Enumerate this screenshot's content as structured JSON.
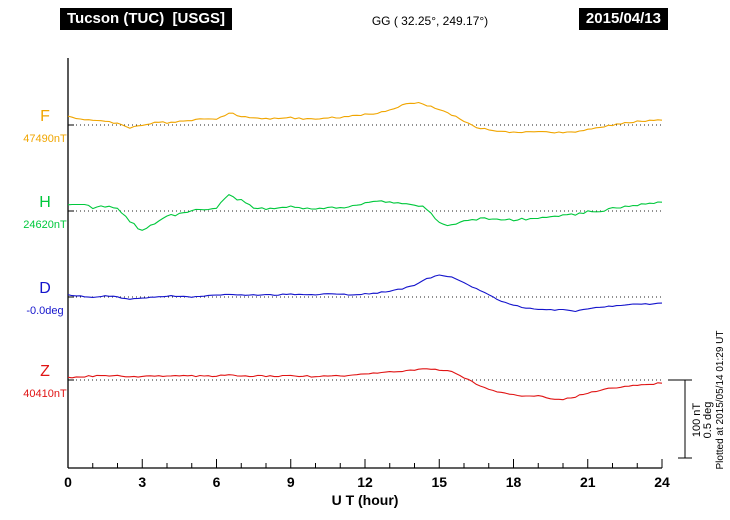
{
  "header": {
    "title": "Tucson (TUC)  [USGS]",
    "coords": "GG ( 32.25°, 249.17°)",
    "date": "2015/04/13"
  },
  "footer": {
    "plotted_at": "Plotted at 2015/05/14 01:29 UT"
  },
  "chart_data": {
    "type": "line",
    "title": "Tucson (TUC) magnetogram 2015/04/13",
    "xlabel": "U T (hour)",
    "xlim": [
      0,
      24
    ],
    "x_ticks": [
      0,
      3,
      6,
      9,
      12,
      15,
      18,
      21,
      24
    ],
    "x_step_hours": 0.5,
    "grid": "dotted horizontal baseline per channel",
    "legend_position": "left margin channel labels",
    "scale_reference": {
      "nT_label": "100 nT",
      "deg_label": "0.5 deg"
    },
    "series": [
      {
        "name": "F",
        "unit": "nT",
        "baseline_label": "47490nT",
        "color": "#f0a500",
        "offsets": [
          10,
          8,
          6,
          4,
          2,
          -3,
          0,
          3,
          3,
          4,
          6,
          8,
          6,
          15,
          11,
          9,
          8,
          8,
          9,
          8,
          8,
          9,
          10,
          11,
          13,
          15,
          19,
          25,
          28,
          25,
          19,
          13,
          4,
          -3,
          -6,
          -8,
          -9,
          -9,
          -8,
          -9,
          -10,
          -9,
          -6,
          -3,
          0,
          3,
          4,
          5,
          6
        ]
      },
      {
        "name": "H",
        "unit": "nT",
        "baseline_label": "24620nT",
        "color": "#00c83c",
        "offsets": [
          8,
          9,
          4,
          6,
          3,
          -13,
          -25,
          -15,
          -6,
          -4,
          0,
          3,
          4,
          20,
          13,
          5,
          3,
          4,
          6,
          4,
          3,
          4,
          5,
          6,
          10,
          13,
          11,
          10,
          8,
          3,
          -15,
          -18,
          -13,
          -10,
          -9,
          -10,
          -11,
          -10,
          -8,
          -6,
          -5,
          -4,
          -1,
          0,
          3,
          5,
          8,
          10,
          11
        ]
      },
      {
        "name": "D",
        "unit": "deg",
        "baseline_label": "-0.0deg",
        "color": "#1414cc",
        "offsets": [
          0.013,
          0.006,
          0,
          0.006,
          0,
          -0.013,
          -0.006,
          0,
          0.006,
          0.006,
          0,
          0.006,
          0.013,
          0.019,
          0.013,
          0.013,
          0.013,
          0.013,
          0.019,
          0.013,
          0.013,
          0.019,
          0.019,
          0.013,
          0.019,
          0.025,
          0.038,
          0.05,
          0.075,
          0.113,
          0.138,
          0.125,
          0.088,
          0.05,
          0.013,
          -0.025,
          -0.05,
          -0.069,
          -0.075,
          -0.081,
          -0.081,
          -0.088,
          -0.075,
          -0.063,
          -0.056,
          -0.05,
          -0.044,
          -0.044,
          -0.038
        ]
      },
      {
        "name": "Z",
        "unit": "nT",
        "baseline_label": "40410nT",
        "color": "#e01414",
        "offsets": [
          3,
          4,
          5,
          5,
          5,
          4,
          4,
          5,
          5,
          5,
          5,
          5,
          5,
          6,
          5,
          5,
          5,
          5,
          5,
          5,
          4,
          5,
          5,
          6,
          8,
          9,
          10,
          11,
          13,
          14,
          13,
          10,
          3,
          -5,
          -11,
          -16,
          -19,
          -20,
          -20,
          -23,
          -24,
          -21,
          -16,
          -13,
          -10,
          -8,
          -6,
          -5,
          -4
        ]
      }
    ]
  }
}
